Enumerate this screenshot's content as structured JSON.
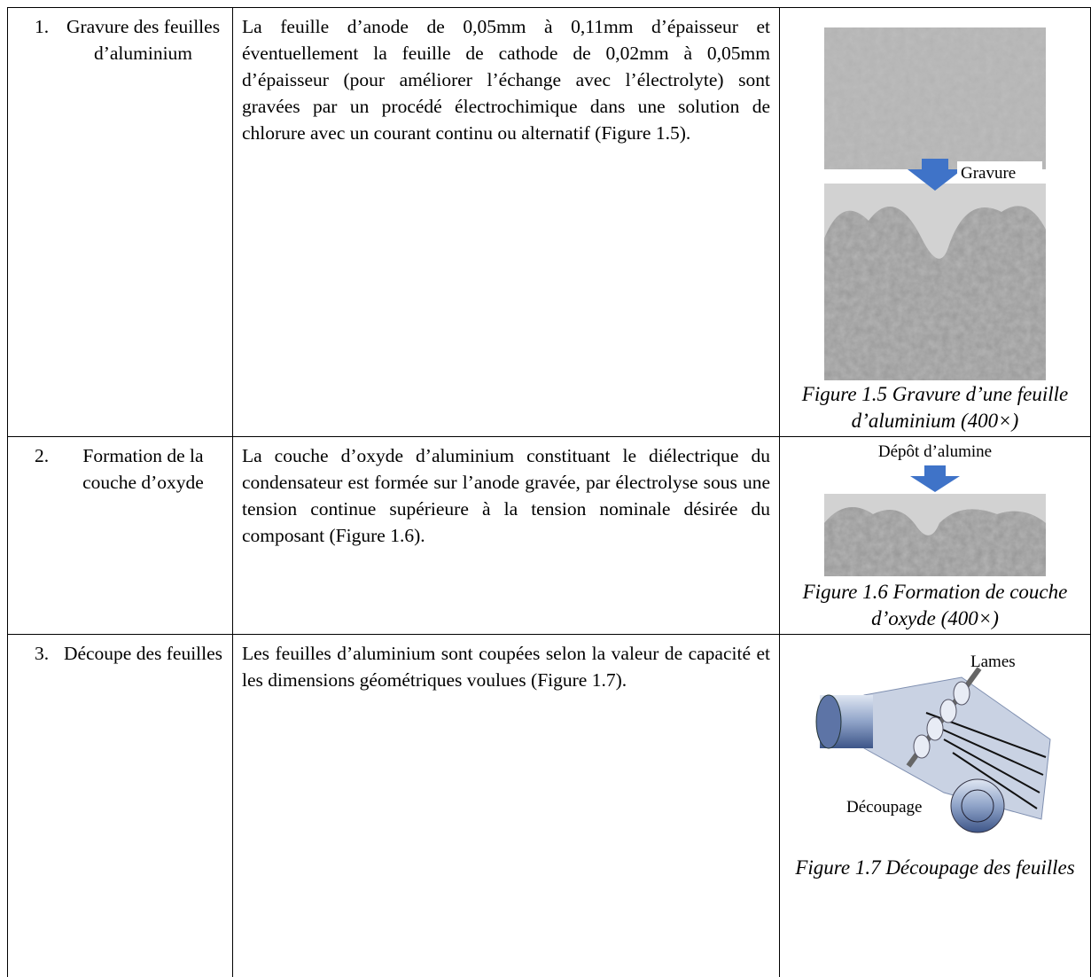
{
  "table": {
    "rows": [
      {
        "number": "1.",
        "step": "Gravure des feuilles d’aluminium",
        "description": "La feuille d’anode de 0,05mm à 0,11mm d’épaisseur et éventuellement la feuille de cathode de 0,02mm à 0,05mm d’épaisseur (pour améliorer l’échange avec l’électrolyte)  sont gravées par un procédé électrochimique dans une solution de chlorure avec un courant continu ou alternatif (Figure 1.5).",
        "figure": {
          "labels": [
            "Gravure"
          ],
          "caption": "Figure 1.5 Gravure d’une feuille d’aluminium (400×)"
        }
      },
      {
        "number": "2.",
        "step": "Formation de la couche d’oxyde",
        "description": "La couche d’oxyde d’aluminium constituant le diélectrique du condensateur est formée sur l’anode gravée, par électrolyse sous une tension continue supérieure à la tension nominale désirée du composant (Figure 1.6).",
        "figure": {
          "labels": [
            "Dépôt d’alumine"
          ],
          "caption": "Figure 1.6 Formation de couche d’oxyde (400×)"
        }
      },
      {
        "number": "3.",
        "step": "Découpe des feuilles",
        "description": "Les feuilles d’aluminium sont coupées selon la valeur de capacité et les dimensions géométriques voulues (Figure 1.7).",
        "figure": {
          "labels": [
            "Lames",
            "Découpage"
          ],
          "caption": "Figure 1.7 Découpage des feuilles"
        }
      }
    ]
  }
}
